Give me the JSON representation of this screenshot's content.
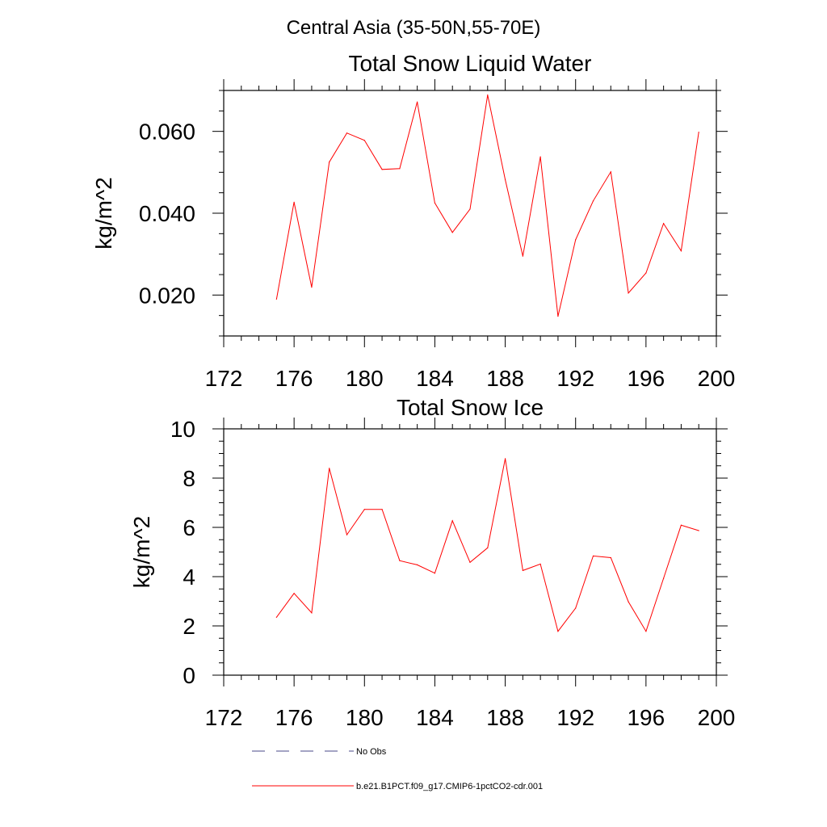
{
  "page_title": "Central Asia (35-50N,55-70E)",
  "legend": {
    "obs_label": "No Obs",
    "obs_color": "#4a4a8a",
    "model_label": "b.e21.B1PCT.f09_g17.CMIP6-1pctCO2-cdr.001",
    "model_color": "#ff0000"
  },
  "chart_data": [
    {
      "type": "line",
      "title": "Total Snow Liquid Water",
      "ylabel": "kg/m^2",
      "xlabel": "",
      "xlim": [
        172,
        200
      ],
      "ylim": [
        0.01,
        0.07
      ],
      "x_ticks": [
        172,
        176,
        180,
        184,
        188,
        192,
        196,
        200
      ],
      "y_ticks": [
        0.02,
        0.04,
        0.06
      ],
      "y_tick_labels": [
        "0.020",
        "0.040",
        "0.060"
      ],
      "grid": false,
      "series": [
        {
          "name": "b.e21.B1PCT.f09_g17.CMIP6-1pctCO2-cdr.001",
          "color": "#ff0000",
          "x": [
            175,
            176,
            177,
            178,
            179,
            180,
            181,
            182,
            183,
            184,
            185,
            186,
            187,
            188,
            189,
            190,
            191,
            192,
            193,
            194,
            195,
            196,
            197,
            198,
            199
          ],
          "values": [
            0.019,
            0.0427,
            0.0219,
            0.0525,
            0.0596,
            0.0578,
            0.0507,
            0.0509,
            0.0672,
            0.0425,
            0.0353,
            0.041,
            0.0689,
            0.0482,
            0.0295,
            0.0538,
            0.0148,
            0.0335,
            0.043,
            0.0501,
            0.0205,
            0.0254,
            0.0375,
            0.0308,
            0.0598
          ]
        }
      ]
    },
    {
      "type": "line",
      "title": "Total Snow Ice",
      "ylabel": "kg/m^2",
      "xlabel": "",
      "xlim": [
        172,
        200
      ],
      "ylim": [
        0,
        10
      ],
      "x_ticks": [
        172,
        176,
        180,
        184,
        188,
        192,
        196,
        200
      ],
      "y_ticks": [
        0,
        2,
        4,
        6,
        8,
        10
      ],
      "y_tick_labels": [
        "0",
        "2",
        "4",
        "6",
        "8",
        "10"
      ],
      "grid": false,
      "series": [
        {
          "name": "b.e21.B1PCT.f09_g17.CMIP6-1pctCO2-cdr.001",
          "color": "#ff0000",
          "x": [
            175,
            176,
            177,
            178,
            179,
            180,
            181,
            182,
            183,
            184,
            185,
            186,
            187,
            188,
            189,
            190,
            191,
            192,
            193,
            194,
            195,
            196,
            197,
            198,
            199
          ],
          "values": [
            2.35,
            3.32,
            2.53,
            8.4,
            5.7,
            6.73,
            6.73,
            4.65,
            4.48,
            4.14,
            6.27,
            4.58,
            5.17,
            8.79,
            4.25,
            4.51,
            1.78,
            2.72,
            4.84,
            4.77,
            2.98,
            1.78,
            3.93,
            6.09,
            5.87
          ]
        }
      ]
    }
  ]
}
